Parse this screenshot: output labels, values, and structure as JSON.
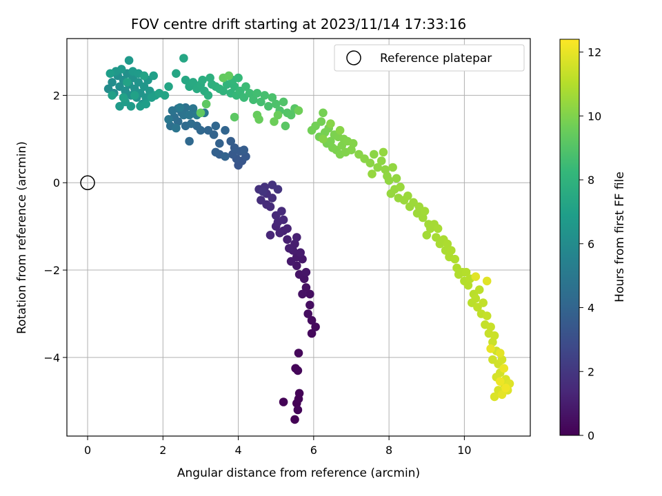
{
  "chart_data": {
    "type": "scatter",
    "title": "FOV centre drift starting at 2023/11/14 17:33:16",
    "xlabel": "Angular distance from reference (arcmin)",
    "ylabel": "Rotation from reference (arcmin)",
    "xlim": [
      -0.55,
      11.75
    ],
    "ylim": [
      -5.8,
      3.3
    ],
    "xticks": [
      0,
      2,
      4,
      6,
      8,
      10
    ],
    "yticks": [
      -4,
      -2,
      0,
      2
    ],
    "grid": true,
    "legend": {
      "placement": "top-right",
      "entries": [
        "Reference platepar"
      ]
    },
    "reference_point": {
      "x": 0,
      "y": 0
    },
    "colorbar": {
      "label": "Hours from first FF file",
      "range": [
        0,
        12.4
      ],
      "ticks": [
        0,
        2,
        4,
        6,
        8,
        10,
        12
      ],
      "colormap": [
        "#440154",
        "#482878",
        "#3e4989",
        "#31688e",
        "#26828e",
        "#1f9e89",
        "#35b779",
        "#6ece58",
        "#b5de2b",
        "#fde725"
      ]
    },
    "points": [
      [
        5.5,
        -5.42,
        0.02
      ],
      [
        5.55,
        -5.05,
        0.05
      ],
      [
        5.2,
        -5.02,
        0.08
      ],
      [
        5.6,
        -4.95,
        0.1
      ],
      [
        5.62,
        -4.82,
        0.12
      ],
      [
        5.58,
        -5.2,
        0.14
      ],
      [
        5.52,
        -4.25,
        0.18
      ],
      [
        5.58,
        -4.3,
        0.2
      ],
      [
        5.6,
        -3.9,
        0.24
      ],
      [
        5.95,
        -3.45,
        0.3
      ],
      [
        6.05,
        -3.3,
        0.34
      ],
      [
        5.95,
        -3.15,
        0.38
      ],
      [
        5.85,
        -3.0,
        0.42
      ],
      [
        5.9,
        -2.8,
        0.46
      ],
      [
        5.9,
        -2.55,
        0.5
      ],
      [
        5.8,
        -2.4,
        0.55
      ],
      [
        5.7,
        -2.55,
        0.6
      ],
      [
        5.75,
        -2.2,
        0.65
      ],
      [
        5.62,
        -2.1,
        0.7
      ],
      [
        5.8,
        -2.05,
        0.74
      ],
      [
        5.55,
        -1.9,
        0.78
      ],
      [
        5.7,
        -1.75,
        0.82
      ],
      [
        5.55,
        -1.7,
        0.86
      ],
      [
        5.4,
        -1.8,
        0.9
      ],
      [
        5.65,
        -1.6,
        0.94
      ],
      [
        5.45,
        -1.55,
        0.98
      ],
      [
        5.5,
        -1.4,
        1.02
      ],
      [
        5.35,
        -1.5,
        1.06
      ],
      [
        5.3,
        -1.3,
        1.1
      ],
      [
        5.55,
        -1.25,
        1.14
      ],
      [
        5.2,
        -1.1,
        1.18
      ],
      [
        5.3,
        -1.05,
        1.22
      ],
      [
        5.1,
        -1.15,
        1.26
      ],
      [
        5.0,
        -1.0,
        1.3
      ],
      [
        4.85,
        -1.2,
        1.34
      ],
      [
        5.05,
        -0.9,
        1.38
      ],
      [
        5.2,
        -0.85,
        1.42
      ],
      [
        5.0,
        -0.75,
        1.46
      ],
      [
        5.15,
        -0.65,
        1.5
      ],
      [
        4.85,
        -0.55,
        1.54
      ],
      [
        4.75,
        -0.5,
        1.58
      ],
      [
        4.6,
        -0.4,
        1.62
      ],
      [
        4.9,
        -0.35,
        1.66
      ],
      [
        4.75,
        -0.25,
        1.7
      ],
      [
        4.55,
        -0.15,
        1.74
      ],
      [
        4.7,
        -0.1,
        1.78
      ],
      [
        4.9,
        -0.05,
        1.82
      ],
      [
        5.05,
        -0.15,
        1.86
      ],
      [
        4.65,
        -0.2,
        1.9
      ],
      [
        4.0,
        0.4,
        3.3
      ],
      [
        4.1,
        0.5,
        3.35
      ],
      [
        3.95,
        0.55,
        3.4
      ],
      [
        4.2,
        0.6,
        3.45
      ],
      [
        3.85,
        0.65,
        3.5
      ],
      [
        4.05,
        0.72,
        3.55
      ],
      [
        3.9,
        0.8,
        3.6
      ],
      [
        4.15,
        0.75,
        3.65
      ],
      [
        3.8,
        0.95,
        3.7
      ],
      [
        3.5,
        0.65,
        3.75
      ],
      [
        3.4,
        0.7,
        3.8
      ],
      [
        3.5,
        0.9,
        3.85
      ],
      [
        3.65,
        0.6,
        3.9
      ],
      [
        3.35,
        1.1,
        3.95
      ],
      [
        3.65,
        1.2,
        4.0
      ],
      [
        3.2,
        1.2,
        4.05
      ],
      [
        3.4,
        1.3,
        4.1
      ],
      [
        3.0,
        1.2,
        4.15
      ],
      [
        2.7,
        0.95,
        4.2
      ],
      [
        2.9,
        1.3,
        4.25
      ],
      [
        2.6,
        1.3,
        4.3
      ],
      [
        2.4,
        1.4,
        4.35
      ],
      [
        2.75,
        1.35,
        4.4
      ],
      [
        2.5,
        1.6,
        4.45
      ],
      [
        2.3,
        1.5,
        4.5
      ],
      [
        2.2,
        1.3,
        4.55
      ],
      [
        2.4,
        1.7,
        4.6
      ],
      [
        2.6,
        1.72,
        4.65
      ],
      [
        2.25,
        1.65,
        4.7
      ],
      [
        2.55,
        1.55,
        4.75
      ],
      [
        2.35,
        1.25,
        4.8
      ],
      [
        2.7,
        1.55,
        4.85
      ],
      [
        2.8,
        1.7,
        4.9
      ],
      [
        2.15,
        1.45,
        4.95
      ],
      [
        3.1,
        1.6,
        5.0
      ],
      [
        2.9,
        1.55,
        5.05
      ],
      [
        2.45,
        1.72,
        5.1
      ],
      [
        0.55,
        2.15,
        6.0
      ],
      [
        0.65,
        2.3,
        6.03
      ],
      [
        0.7,
        2.05,
        6.06
      ],
      [
        0.8,
        2.45,
        6.09
      ],
      [
        0.85,
        2.2,
        6.12
      ],
      [
        0.95,
        2.35,
        6.15
      ],
      [
        1.0,
        2.1,
        6.18
      ],
      [
        1.05,
        2.5,
        6.21
      ],
      [
        1.1,
        2.25,
        6.24
      ],
      [
        1.15,
        2.0,
        6.27
      ],
      [
        1.2,
        2.4,
        6.3
      ],
      [
        1.25,
        2.15,
        6.33
      ],
      [
        1.3,
        1.95,
        6.36
      ],
      [
        1.35,
        2.3,
        6.39
      ],
      [
        1.4,
        2.05,
        6.42
      ],
      [
        1.45,
        1.8,
        6.45
      ],
      [
        1.5,
        2.2,
        6.48
      ],
      [
        1.55,
        1.95,
        6.51
      ],
      [
        1.6,
        2.35,
        6.54
      ],
      [
        1.65,
        2.1,
        6.57
      ],
      [
        0.75,
        2.55,
        6.6
      ],
      [
        0.9,
        2.6,
        6.63
      ],
      [
        1.1,
        2.8,
        6.66
      ],
      [
        1.2,
        2.55,
        6.69
      ],
      [
        1.35,
        2.5,
        6.72
      ],
      [
        0.85,
        1.75,
        6.75
      ],
      [
        1.0,
        1.85,
        6.78
      ],
      [
        1.15,
        1.75,
        6.81
      ],
      [
        1.4,
        1.75,
        6.84
      ],
      [
        1.55,
        1.8,
        6.87
      ],
      [
        0.6,
        2.5,
        6.9
      ],
      [
        1.7,
        1.95,
        6.93
      ],
      [
        1.8,
        2.0,
        6.96
      ],
      [
        1.75,
        2.45,
        6.99
      ],
      [
        0.65,
        2.0,
        7.02
      ],
      [
        1.25,
        2.0,
        7.05
      ],
      [
        0.95,
        1.95,
        7.08
      ],
      [
        1.05,
        2.3,
        7.11
      ],
      [
        1.9,
        2.05,
        7.14
      ],
      [
        1.5,
        2.45,
        7.17
      ],
      [
        2.05,
        2.0,
        7.2
      ],
      [
        2.15,
        2.2,
        7.25
      ],
      [
        2.35,
        2.5,
        7.3
      ],
      [
        2.55,
        2.85,
        7.35
      ],
      [
        2.6,
        2.35,
        7.4
      ],
      [
        2.7,
        2.2,
        7.45
      ],
      [
        2.8,
        2.3,
        7.5
      ],
      [
        2.9,
        2.15,
        7.55
      ],
      [
        3.0,
        2.25,
        7.6
      ],
      [
        3.1,
        2.1,
        7.65
      ],
      [
        3.05,
        2.35,
        7.7
      ],
      [
        3.2,
        2.0,
        7.75
      ],
      [
        3.3,
        2.25,
        7.8
      ],
      [
        3.25,
        2.4,
        7.85
      ],
      [
        3.4,
        2.2,
        7.9
      ],
      [
        3.5,
        2.15,
        7.95
      ],
      [
        3.6,
        2.1,
        8.0
      ],
      [
        3.7,
        2.25,
        8.05
      ],
      [
        3.8,
        2.05,
        8.1
      ],
      [
        3.9,
        2.2,
        8.15
      ],
      [
        3.85,
        2.35,
        8.2
      ],
      [
        3.95,
        2.0,
        8.25
      ],
      [
        4.0,
        2.4,
        8.3
      ],
      [
        4.05,
        2.1,
        8.35
      ],
      [
        4.15,
        1.95,
        8.4
      ],
      [
        4.2,
        2.2,
        8.45
      ],
      [
        4.3,
        2.05,
        8.5
      ],
      [
        4.4,
        1.9,
        8.55
      ],
      [
        4.5,
        2.05,
        8.6
      ],
      [
        4.6,
        1.85,
        8.65
      ],
      [
        4.7,
        2.0,
        8.7
      ],
      [
        4.8,
        1.75,
        8.75
      ],
      [
        4.9,
        1.95,
        8.8
      ],
      [
        5.0,
        1.8,
        8.85
      ],
      [
        5.1,
        1.65,
        8.9
      ],
      [
        5.2,
        1.85,
        8.95
      ],
      [
        5.3,
        1.6,
        9.0
      ],
      [
        5.4,
        1.55,
        9.05
      ],
      [
        5.5,
        1.7,
        9.1
      ],
      [
        5.25,
        1.3,
        9.15
      ],
      [
        3.9,
        1.5,
        9.2
      ],
      [
        3.15,
        1.8,
        9.25
      ],
      [
        3.0,
        1.6,
        9.3
      ],
      [
        3.6,
        2.4,
        9.35
      ],
      [
        3.75,
        2.45,
        9.4
      ],
      [
        4.5,
        1.55,
        9.45
      ],
      [
        4.55,
        1.45,
        9.5
      ],
      [
        5.05,
        1.55,
        9.55
      ],
      [
        4.95,
        1.4,
        9.6
      ],
      [
        5.6,
        1.65,
        9.65
      ],
      [
        5.95,
        1.2,
        9.7
      ],
      [
        6.05,
        1.3,
        9.72
      ],
      [
        6.15,
        1.05,
        9.74
      ],
      [
        6.2,
        1.4,
        9.76
      ],
      [
        6.25,
        1.6,
        9.78
      ],
      [
        6.3,
        1.15,
        9.8
      ],
      [
        6.35,
        0.9,
        9.82
      ],
      [
        6.4,
        1.25,
        9.84
      ],
      [
        6.45,
        0.95,
        9.86
      ],
      [
        6.5,
        0.8,
        9.88
      ],
      [
        6.55,
        1.1,
        9.9
      ],
      [
        6.6,
        0.75,
        9.92
      ],
      [
        6.65,
        1.05,
        9.94
      ],
      [
        6.7,
        0.65,
        9.96
      ],
      [
        6.75,
        0.85,
        9.98
      ],
      [
        6.8,
        1.0,
        10.0
      ],
      [
        6.85,
        0.7,
        10.02
      ],
      [
        6.9,
        0.95,
        10.04
      ],
      [
        7.0,
        0.75,
        10.06
      ],
      [
        7.05,
        0.9,
        10.08
      ],
      [
        6.25,
        1.0,
        10.1
      ],
      [
        6.45,
        1.35,
        10.12
      ],
      [
        6.7,
        1.2,
        10.14
      ],
      [
        7.2,
        0.65,
        10.16
      ],
      [
        7.35,
        0.55,
        10.18
      ],
      [
        7.5,
        0.45,
        10.2
      ],
      [
        7.6,
        0.65,
        10.22
      ],
      [
        7.7,
        0.35,
        10.24
      ],
      [
        7.8,
        0.5,
        10.26
      ],
      [
        7.9,
        0.3,
        10.28
      ],
      [
        7.95,
        0.15,
        10.3
      ],
      [
        8.0,
        0.05,
        10.32
      ],
      [
        8.1,
        0.35,
        10.34
      ],
      [
        8.2,
        0.1,
        10.36
      ],
      [
        7.85,
        0.7,
        10.38
      ],
      [
        7.55,
        0.2,
        10.4
      ],
      [
        8.05,
        -0.25,
        10.42
      ],
      [
        8.15,
        -0.15,
        10.44
      ],
      [
        8.25,
        -0.35,
        10.46
      ],
      [
        8.3,
        -0.1,
        10.48
      ],
      [
        8.4,
        -0.4,
        10.5
      ],
      [
        8.5,
        -0.3,
        10.52
      ],
      [
        8.55,
        -0.55,
        10.54
      ],
      [
        8.65,
        -0.45,
        10.56
      ],
      [
        8.75,
        -0.7,
        10.58
      ],
      [
        8.8,
        -0.55,
        10.6
      ],
      [
        8.9,
        -0.8,
        10.62
      ],
      [
        8.95,
        -0.65,
        10.64
      ],
      [
        9.05,
        -0.95,
        10.66
      ],
      [
        9.0,
        -1.2,
        10.68
      ],
      [
        9.1,
        -1.05,
        10.7
      ],
      [
        9.2,
        -0.95,
        10.72
      ],
      [
        9.25,
        -1.25,
        10.74
      ],
      [
        9.3,
        -1.05,
        10.76
      ],
      [
        9.35,
        -1.4,
        10.78
      ],
      [
        9.45,
        -1.3,
        10.8
      ],
      [
        9.5,
        -1.55,
        10.82
      ],
      [
        9.55,
        -1.4,
        10.84
      ],
      [
        9.6,
        -1.7,
        10.86
      ],
      [
        9.65,
        -1.55,
        10.88
      ],
      [
        9.75,
        -1.75,
        10.9
      ],
      [
        9.8,
        -1.95,
        10.92
      ],
      [
        9.85,
        -2.1,
        10.94
      ],
      [
        9.95,
        -2.05,
        10.96
      ],
      [
        10.0,
        -2.25,
        10.98
      ],
      [
        10.05,
        -2.05,
        11.0
      ],
      [
        10.1,
        -2.35,
        11.03
      ],
      [
        10.15,
        -2.2,
        11.06
      ],
      [
        10.25,
        -2.55,
        11.09
      ],
      [
        10.2,
        -2.75,
        11.12
      ],
      [
        10.3,
        -2.65,
        11.15
      ],
      [
        10.4,
        -2.45,
        11.18
      ],
      [
        10.35,
        -2.85,
        11.21
      ],
      [
        10.45,
        -3.0,
        11.24
      ],
      [
        10.5,
        -2.75,
        11.27
      ],
      [
        10.55,
        -3.25,
        11.3
      ],
      [
        10.6,
        -3.05,
        11.33
      ],
      [
        10.65,
        -3.45,
        11.36
      ],
      [
        10.7,
        -3.3,
        11.39
      ],
      [
        10.75,
        -3.65,
        11.42
      ],
      [
        10.8,
        -3.5,
        11.45
      ],
      [
        10.85,
        -3.85,
        11.48
      ],
      [
        10.75,
        -4.05,
        11.51
      ],
      [
        10.9,
        -4.15,
        11.54
      ],
      [
        10.95,
        -4.35,
        11.57
      ],
      [
        11.0,
        -4.05,
        11.6
      ],
      [
        10.85,
        -4.45,
        11.63
      ],
      [
        11.05,
        -4.6,
        11.66
      ],
      [
        10.9,
        -4.75,
        11.69
      ],
      [
        11.1,
        -4.5,
        11.72
      ],
      [
        10.8,
        -4.9,
        11.75
      ],
      [
        11.15,
        -4.75,
        11.78
      ],
      [
        11.2,
        -4.6,
        11.81
      ],
      [
        10.6,
        -2.25,
        11.84
      ],
      [
        10.3,
        -2.15,
        11.87
      ],
      [
        10.95,
        -3.9,
        11.9
      ],
      [
        11.0,
        -4.85,
        11.95
      ],
      [
        10.7,
        -3.8,
        12.0
      ],
      [
        11.05,
        -4.25,
        12.05
      ],
      [
        10.95,
        -4.55,
        12.1
      ],
      [
        11.1,
        -4.7,
        12.15
      ]
    ]
  }
}
